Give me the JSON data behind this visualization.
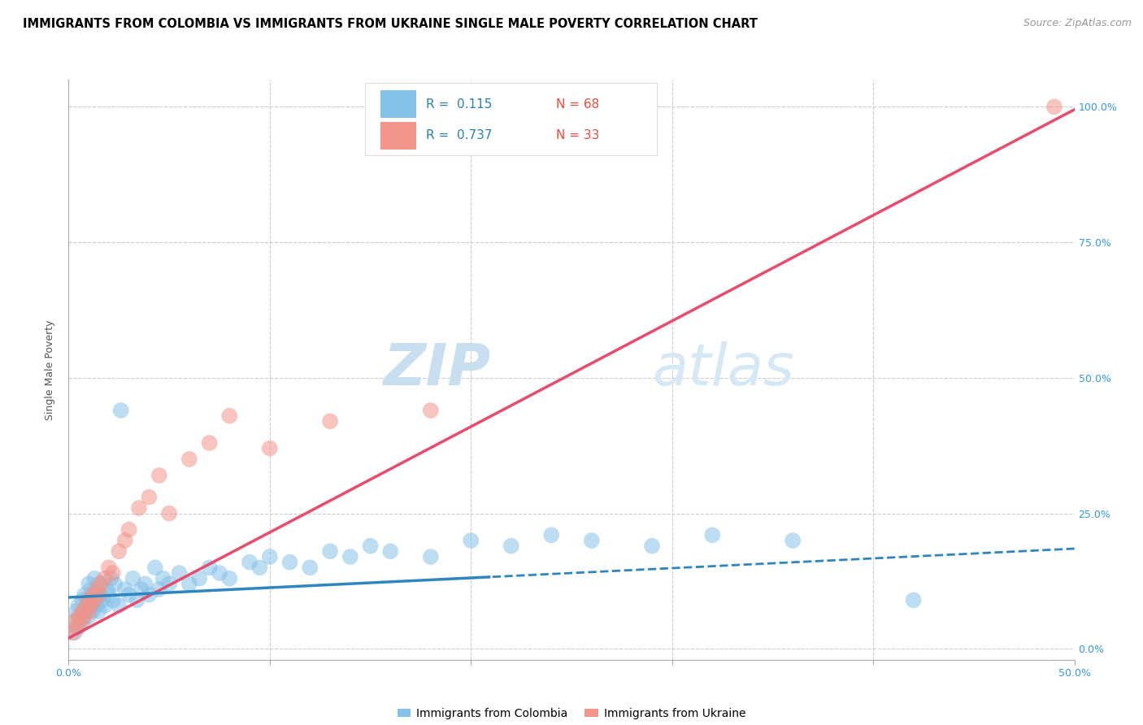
{
  "title": "IMMIGRANTS FROM COLOMBIA VS IMMIGRANTS FROM UKRAINE SINGLE MALE POVERTY CORRELATION CHART",
  "source": "Source: ZipAtlas.com",
  "ylabel": "Single Male Poverty",
  "r_colombia": 0.115,
  "n_colombia": 68,
  "r_ukraine": 0.737,
  "n_ukraine": 33,
  "color_colombia": "#85c1e9",
  "color_ukraine": "#f1948a",
  "color_trendline_colombia": "#2e86c1",
  "color_trendline_ukraine": "#e74c6e",
  "color_axis_labels": "#3498db",
  "watermark_zip": "ZIP",
  "watermark_atlas": "atlas",
  "xmin": 0.0,
  "xmax": 0.5,
  "ymin": -0.02,
  "ymax": 1.05,
  "right_yticks": [
    0.0,
    0.25,
    0.5,
    0.75,
    1.0
  ],
  "right_yticklabels": [
    "0.0%",
    "25.0%",
    "50.0%",
    "75.0%",
    "100.0%"
  ],
  "colombia_scatter_x": [
    0.002,
    0.003,
    0.004,
    0.005,
    0.005,
    0.006,
    0.007,
    0.007,
    0.008,
    0.008,
    0.009,
    0.01,
    0.01,
    0.01,
    0.011,
    0.011,
    0.012,
    0.012,
    0.013,
    0.013,
    0.014,
    0.015,
    0.015,
    0.016,
    0.017,
    0.018,
    0.019,
    0.02,
    0.021,
    0.022,
    0.023,
    0.025,
    0.026,
    0.028,
    0.03,
    0.032,
    0.034,
    0.036,
    0.038,
    0.04,
    0.043,
    0.045,
    0.047,
    0.05,
    0.055,
    0.06,
    0.065,
    0.07,
    0.075,
    0.08,
    0.09,
    0.095,
    0.1,
    0.11,
    0.12,
    0.13,
    0.14,
    0.15,
    0.16,
    0.18,
    0.2,
    0.22,
    0.24,
    0.26,
    0.29,
    0.32,
    0.36,
    0.42
  ],
  "colombia_scatter_y": [
    0.05,
    0.03,
    0.07,
    0.04,
    0.08,
    0.06,
    0.09,
    0.05,
    0.1,
    0.07,
    0.08,
    0.06,
    0.09,
    0.12,
    0.08,
    0.11,
    0.07,
    0.1,
    0.09,
    0.13,
    0.08,
    0.07,
    0.12,
    0.1,
    0.09,
    0.08,
    0.11,
    0.1,
    0.13,
    0.09,
    0.12,
    0.08,
    0.44,
    0.11,
    0.1,
    0.13,
    0.09,
    0.11,
    0.12,
    0.1,
    0.15,
    0.11,
    0.13,
    0.12,
    0.14,
    0.12,
    0.13,
    0.15,
    0.14,
    0.13,
    0.16,
    0.15,
    0.17,
    0.16,
    0.15,
    0.18,
    0.17,
    0.19,
    0.18,
    0.17,
    0.2,
    0.19,
    0.21,
    0.2,
    0.19,
    0.21,
    0.2,
    0.09
  ],
  "ukraine_scatter_x": [
    0.002,
    0.003,
    0.004,
    0.005,
    0.006,
    0.007,
    0.008,
    0.009,
    0.01,
    0.01,
    0.011,
    0.012,
    0.013,
    0.014,
    0.015,
    0.016,
    0.018,
    0.02,
    0.022,
    0.025,
    0.028,
    0.03,
    0.035,
    0.04,
    0.045,
    0.05,
    0.06,
    0.07,
    0.08,
    0.1,
    0.13,
    0.18,
    0.49
  ],
  "ukraine_scatter_y": [
    0.03,
    0.05,
    0.04,
    0.06,
    0.05,
    0.07,
    0.06,
    0.08,
    0.07,
    0.09,
    0.08,
    0.1,
    0.09,
    0.11,
    0.1,
    0.12,
    0.13,
    0.15,
    0.14,
    0.18,
    0.2,
    0.22,
    0.26,
    0.28,
    0.32,
    0.25,
    0.35,
    0.38,
    0.43,
    0.37,
    0.42,
    0.44,
    1.0
  ],
  "grid_color": "#cccccc",
  "background_color": "#ffffff",
  "title_fontsize": 10.5,
  "axis_label_fontsize": 9,
  "tick_fontsize": 9,
  "legend_fontsize": 10,
  "source_fontsize": 9,
  "colombia_trendline_slope": 0.18,
  "colombia_trendline_intercept": 0.095,
  "ukraine_trendline_slope": 1.95,
  "ukraine_trendline_intercept": 0.02
}
